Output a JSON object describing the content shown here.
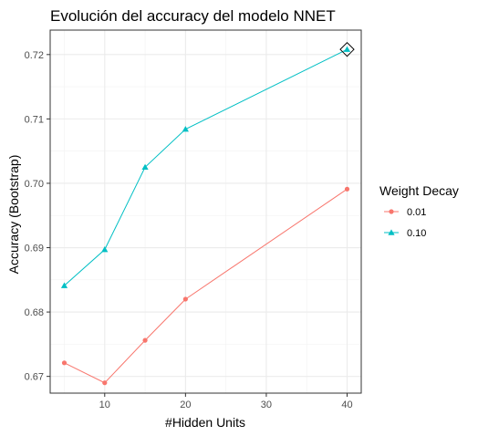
{
  "chart_data": {
    "type": "line",
    "title": "Evolución del accuracy del modelo NNET",
    "xlabel": "#Hidden Units",
    "ylabel": "Accuracy (Bootstrap)",
    "x": [
      5,
      10,
      15,
      20,
      40
    ],
    "xlim": [
      3.25,
      41.75
    ],
    "ylim": [
      0.6674,
      0.7238
    ],
    "x_ticks": [
      10,
      20,
      30,
      40
    ],
    "y_ticks": [
      0.67,
      0.68,
      0.69,
      0.7,
      0.71,
      0.72
    ],
    "x_tick_labels": [
      "10",
      "20",
      "30",
      "40"
    ],
    "y_tick_labels": [
      "0.67",
      "0.68",
      "0.69",
      "0.70",
      "0.71",
      "0.72"
    ],
    "grid": true,
    "legend": {
      "title": "Weight Decay",
      "placement": "right"
    },
    "series": [
      {
        "name": "0.01",
        "color": "#F8766D",
        "marker": "circle",
        "values": [
          0.6721,
          0.669,
          0.6756,
          0.682,
          0.6991
        ]
      },
      {
        "name": "0.10",
        "color": "#00BFC4",
        "marker": "triangle",
        "values": [
          0.6841,
          0.6897,
          0.7025,
          0.7084,
          0.7208
        ]
      }
    ],
    "highlight": {
      "series": "0.10",
      "x": 40,
      "y": 0.7208,
      "marker": "diamond"
    }
  }
}
